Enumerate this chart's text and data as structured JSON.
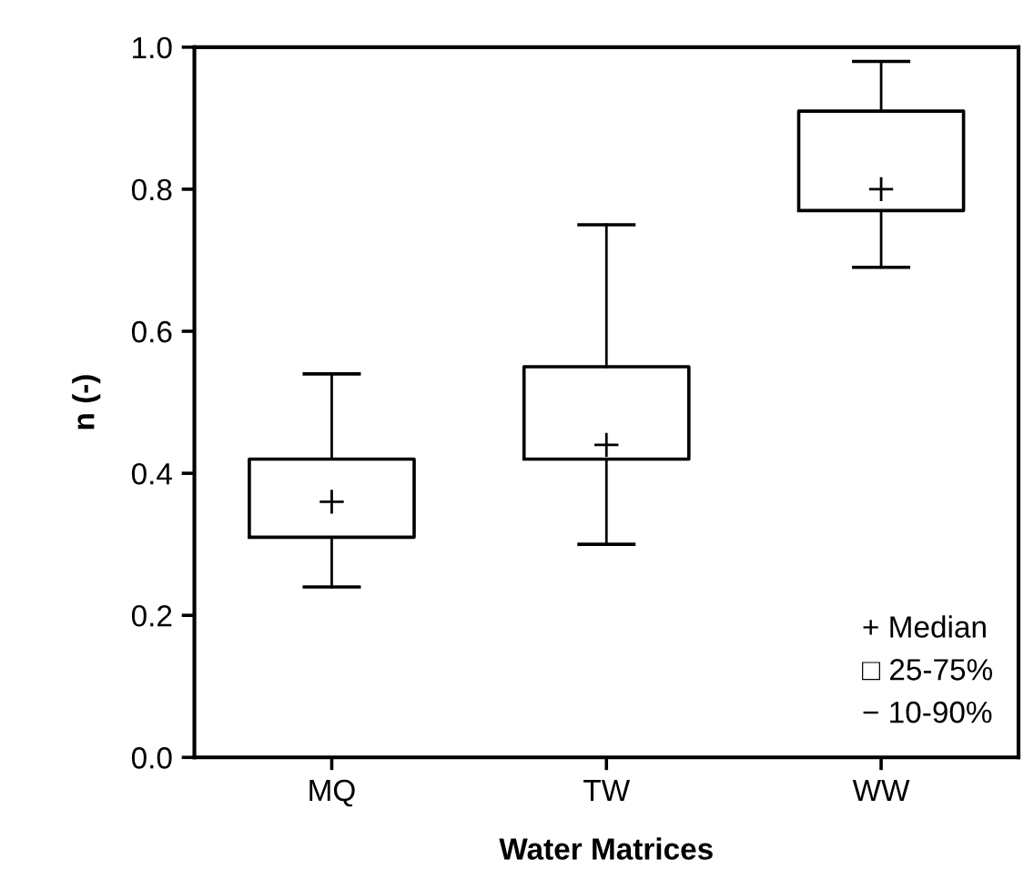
{
  "chart_data": {
    "type": "box",
    "xlabel": "Water Matrices",
    "ylabel": "n (-)",
    "categories": [
      "MQ",
      "TW",
      "WW"
    ],
    "boxes": [
      {
        "low": 0.24,
        "q1": 0.31,
        "median": 0.36,
        "q3": 0.42,
        "high": 0.54
      },
      {
        "low": 0.3,
        "q1": 0.42,
        "median": 0.44,
        "q3": 0.55,
        "high": 0.75
      },
      {
        "low": 0.69,
        "q1": 0.77,
        "median": 0.8,
        "q3": 0.91,
        "high": 0.98
      }
    ],
    "ylim": [
      0,
      1
    ],
    "yticks": [
      {
        "value": 0,
        "label": "0.0"
      },
      {
        "value": 0.2,
        "label": "0.2"
      },
      {
        "value": 0.4,
        "label": "0.4"
      },
      {
        "value": 0.6,
        "label": "0.6"
      },
      {
        "value": 0.8,
        "label": "0.8"
      },
      {
        "value": 1,
        "label": "1.0"
      }
    ],
    "grid": false,
    "annotations": [
      "+ Median",
      "□ 25-75%",
      "− 10-90%"
    ]
  }
}
